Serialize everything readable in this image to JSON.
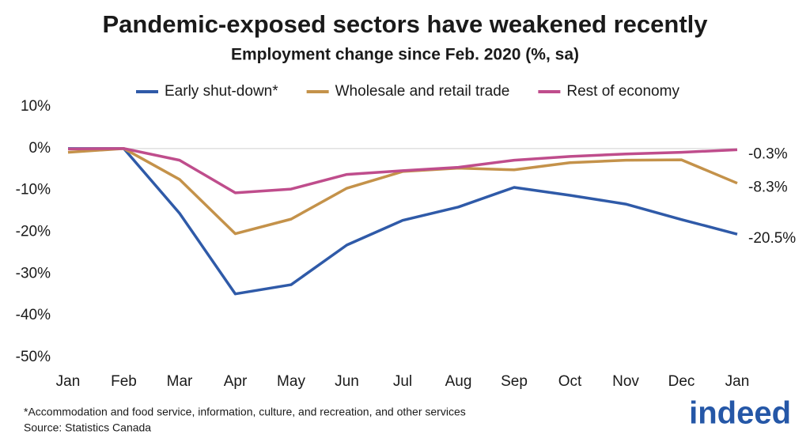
{
  "chart_data": {
    "type": "line",
    "title": "Pandemic-exposed sectors have weakened recently",
    "subtitle": "Employment change since Feb. 2020 (%, sa)",
    "categories": [
      "Jan",
      "Feb",
      "Mar",
      "Apr",
      "May",
      "Jun",
      "Jul",
      "Aug",
      "Sep",
      "Oct",
      "Nov",
      "Dec",
      "Jan"
    ],
    "series": [
      {
        "name": "Early shut-down*",
        "color": "#2f5aa8",
        "values": [
          0,
          0,
          -15.5,
          -34.8,
          -32.6,
          -23.1,
          -17.2,
          -14.0,
          -9.3,
          -11.2,
          -13.3,
          -17.0,
          -20.5
        ],
        "value_labels": [
          null,
          null,
          null,
          null,
          null,
          null,
          null,
          null,
          null,
          null,
          null,
          null,
          "-20.5%"
        ]
      },
      {
        "name": "Wholesale and retail trade",
        "color": "#c4924a",
        "values": [
          -0.9,
          0,
          -7.4,
          -20.4,
          -16.9,
          -9.5,
          -5.5,
          -4.7,
          -5.1,
          -3.4,
          -2.8,
          -2.7,
          -8.3
        ],
        "value_labels": [
          null,
          null,
          null,
          null,
          null,
          null,
          null,
          null,
          null,
          null,
          null,
          null,
          "-8.3%"
        ]
      },
      {
        "name": "Rest of economy",
        "color": "#bf4d8c",
        "values": [
          -0.1,
          0,
          -2.8,
          -10.6,
          -9.7,
          -6.2,
          -5.3,
          -4.5,
          -2.8,
          -1.9,
          -1.3,
          -0.9,
          -0.3
        ],
        "value_labels": [
          null,
          null,
          null,
          null,
          null,
          null,
          null,
          null,
          null,
          null,
          null,
          null,
          "-0.3%"
        ]
      }
    ],
    "ylim": [
      -50,
      10
    ],
    "yticks": [
      {
        "value": 10,
        "label": "10%"
      },
      {
        "value": 0,
        "label": "0%"
      },
      {
        "value": -10,
        "label": "-10%"
      },
      {
        "value": -20,
        "label": "-20%"
      },
      {
        "value": -30,
        "label": "-30%"
      },
      {
        "value": -40,
        "label": "-40%"
      },
      {
        "value": -50,
        "label": "-50%"
      }
    ],
    "zero_line": true,
    "legend": "top",
    "footnote": "*Accommodation and food service, information, culture, and recreation, and other services",
    "source": "Source: Statistics Canada",
    "logo": "indeed"
  }
}
